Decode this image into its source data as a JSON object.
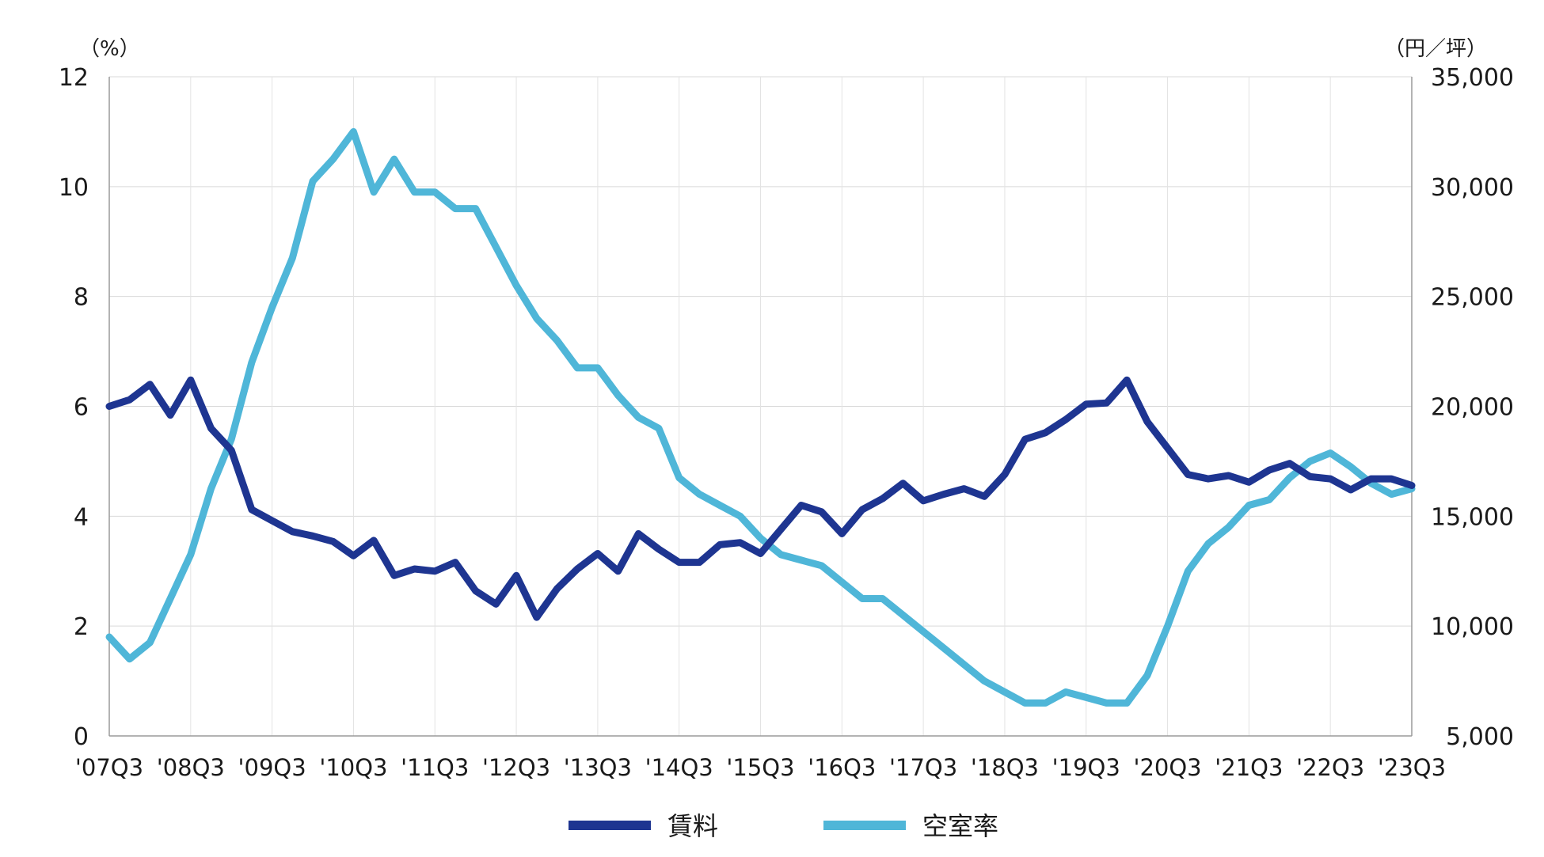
{
  "chart_data": {
    "type": "line",
    "left_axis": {
      "unit_label": "（%）",
      "ylim": [
        0,
        12
      ],
      "ticks": [
        0,
        2,
        4,
        6,
        8,
        10,
        12
      ],
      "tick_labels": [
        "0",
        "2",
        "4",
        "6",
        "8",
        "10",
        "12"
      ]
    },
    "right_axis": {
      "unit_label": "（円／坪）",
      "ylim": [
        5000,
        35000
      ],
      "ticks": [
        5000,
        10000,
        15000,
        20000,
        25000,
        30000,
        35000
      ],
      "tick_labels": [
        "5,000",
        "10,000",
        "15,000",
        "20,000",
        "25,000",
        "30,000",
        "35,000"
      ]
    },
    "x_tick_labels": [
      "'07Q3",
      "'08Q3",
      "'09Q3",
      "'10Q3",
      "'11Q3",
      "'12Q3",
      "'13Q3",
      "'14Q3",
      "'15Q3",
      "'16Q3",
      "'17Q3",
      "'18Q3",
      "'19Q3",
      "'20Q3",
      "'21Q3",
      "'22Q3",
      "'23Q3"
    ],
    "quarters_per_tick": 4,
    "grid": true,
    "legend_position": "bottom",
    "series": [
      {
        "name": "賃料",
        "axis": "right",
        "color": "#1e3591",
        "values": [
          20000,
          20300,
          21000,
          19600,
          21200,
          19000,
          18000,
          15300,
          14800,
          14300,
          14100,
          13850,
          13200,
          13900,
          12300,
          12600,
          12500,
          12900,
          11600,
          11000,
          12300,
          10400,
          11700,
          12600,
          13300,
          12500,
          14200,
          13500,
          12900,
          12900,
          13700,
          13800,
          13300,
          14400,
          15500,
          15200,
          14200,
          15300,
          15800,
          16500,
          15700,
          16000,
          16250,
          15900,
          16900,
          18500,
          18800,
          19400,
          20100,
          20150,
          21200,
          19300,
          18100,
          16900,
          16700,
          16850,
          16550,
          17100,
          17400,
          16800,
          16700,
          16200,
          16700,
          16700,
          16400
        ]
      },
      {
        "name": "空室率",
        "axis": "left",
        "color": "#4fb6d8",
        "values": [
          1.8,
          1.4,
          1.7,
          2.5,
          3.3,
          4.5,
          5.4,
          6.8,
          7.8,
          8.7,
          10.1,
          10.5,
          11.0,
          9.9,
          10.5,
          9.9,
          9.9,
          9.6,
          9.6,
          8.9,
          8.2,
          7.6,
          7.2,
          6.7,
          6.7,
          6.2,
          5.8,
          5.6,
          4.7,
          4.4,
          4.2,
          4.0,
          3.6,
          3.3,
          3.2,
          3.1,
          2.8,
          2.5,
          2.5,
          2.2,
          1.9,
          1.6,
          1.3,
          1.0,
          0.8,
          0.6,
          0.6,
          0.8,
          0.7,
          0.6,
          0.6,
          1.1,
          2.0,
          3.0,
          3.5,
          3.8,
          4.2,
          4.3,
          4.7,
          5.0,
          5.15,
          4.9,
          4.6,
          4.4,
          4.5
        ]
      }
    ]
  }
}
